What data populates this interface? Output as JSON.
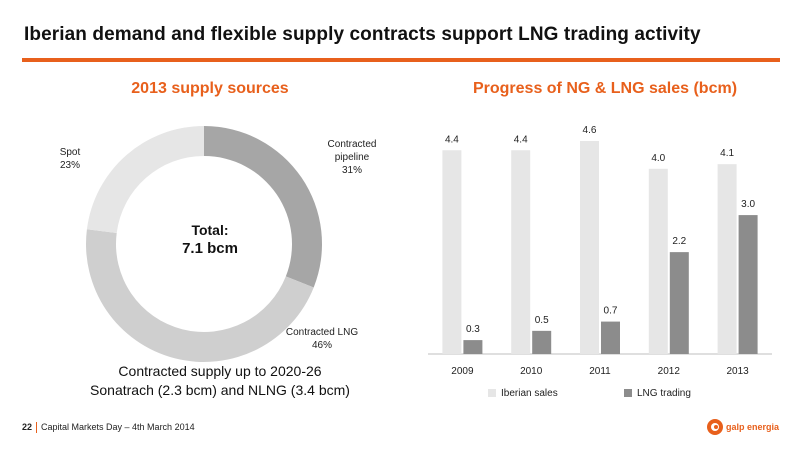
{
  "header": {
    "title": "Iberian demand and flexible supply contracts support LNG trading activity"
  },
  "donut": {
    "title": "2013 supply sources",
    "total_label": "Total:",
    "total_value": "7.1 bcm",
    "segments": [
      {
        "label_lines": [
          "Contracted",
          "pipeline",
          "31%"
        ],
        "value": 31,
        "color": "#a6a6a6"
      },
      {
        "label_lines": [
          "Contracted LNG",
          "46%"
        ],
        "value": 46,
        "color": "#cfcfcf"
      },
      {
        "label_lines": [
          "Spot",
          "23%"
        ],
        "value": 23,
        "color": "#e6e6e6"
      }
    ],
    "note_line1": "Contracted supply up to 2020-26",
    "note_line2": "Sonatrach (2.3 bcm) and NLNG (3.4 bcm)"
  },
  "chart_data": {
    "type": "bar",
    "title": "Progress of NG & LNG sales (bcm)",
    "categories": [
      "2009",
      "2010",
      "2011",
      "2012",
      "2013"
    ],
    "series": [
      {
        "name": "Iberian sales",
        "values": [
          4.4,
          4.4,
          4.6,
          4.0,
          4.1
        ],
        "labels": [
          "4.4",
          "4.4",
          "4.6",
          "4.0",
          "4.1"
        ],
        "color": "#e6e6e6"
      },
      {
        "name": "LNG trading",
        "values": [
          0.3,
          0.5,
          0.7,
          2.2,
          3.0
        ],
        "labels": [
          "0.3",
          "0.5",
          "0.7",
          "2.2",
          "3.0"
        ],
        "color": "#8c8c8c"
      }
    ],
    "ylim": [
      0,
      5
    ],
    "grid": false,
    "legend": "bottom"
  },
  "footer": {
    "page": "22",
    "text": "Capital Markets Day – 4th March 2014"
  },
  "logo": {
    "text": "galp energia",
    "icon": "galp-logo-icon"
  }
}
